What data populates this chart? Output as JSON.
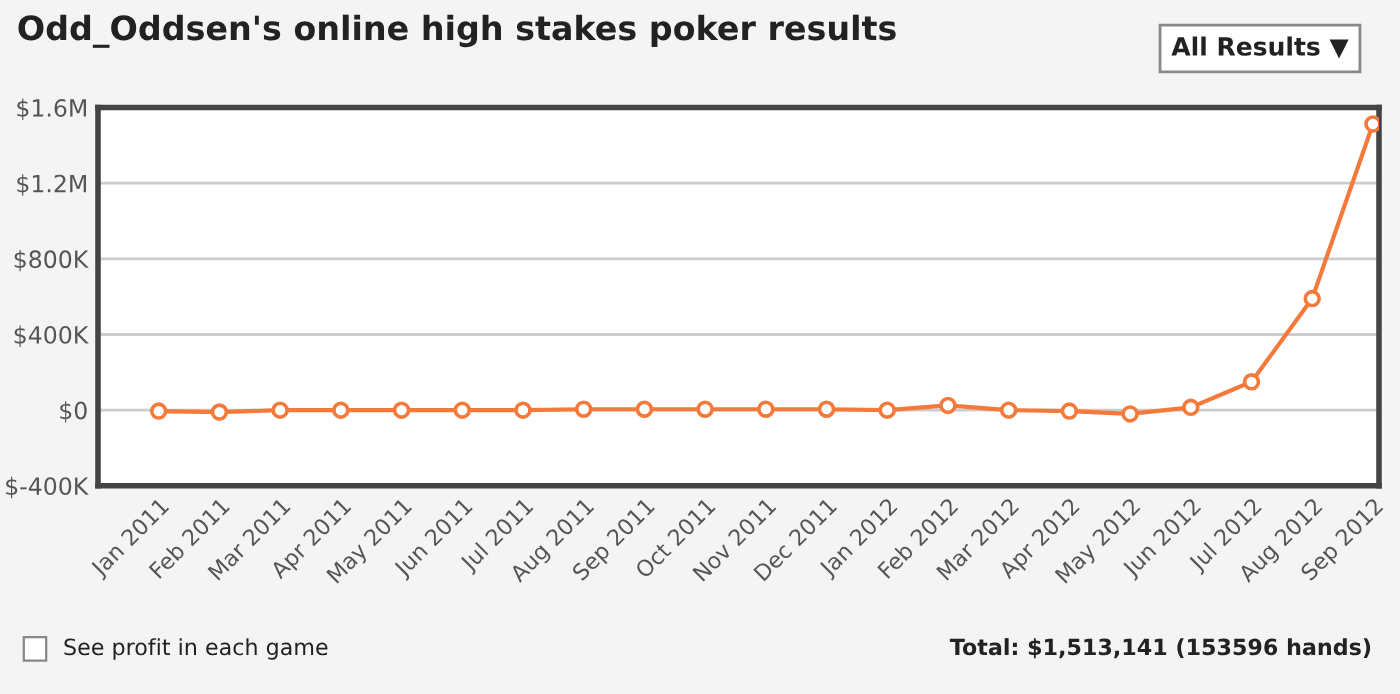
{
  "chart_data": {
    "type": "line",
    "title": "Odd_Oddsen's online high stakes poker results",
    "categories": [
      "Jan 2011",
      "Feb 2011",
      "Mar 2011",
      "Apr 2011",
      "May 2011",
      "Jun 2011",
      "Jul 2011",
      "Aug 2011",
      "Sep 2011",
      "Oct 2011",
      "Nov 2011",
      "Dec 2011",
      "Jan 2012",
      "Feb 2012",
      "Mar 2012",
      "Apr 2012",
      "May 2012",
      "Jun 2012",
      "Jul 2012",
      "Aug 2012",
      "Sep 2012"
    ],
    "series": [
      {
        "color": "#f47a3c",
        "values": [
          -5000,
          -10000,
          0,
          0,
          0,
          0,
          0,
          5000,
          5000,
          5000,
          5000,
          5000,
          0,
          25000,
          0,
          -5000,
          -20000,
          15000,
          150000,
          590000,
          1513141
        ]
      }
    ],
    "ylim": [
      -400000,
      1600000
    ],
    "yticks": [
      {
        "value": -400000,
        "label": "$-400K"
      },
      {
        "value": 0,
        "label": "$0"
      },
      {
        "value": 400000,
        "label": "$400K"
      },
      {
        "value": 800000,
        "label": "$800K"
      },
      {
        "value": 1200000,
        "label": "$1.2M"
      },
      {
        "value": 1600000,
        "label": "$1.6M"
      }
    ],
    "grid": "y",
    "marker": "circle",
    "line_style": "solid",
    "legend": false,
    "annotations": [
      "All Results ▼",
      "See profit in each game",
      "Total: $1,513,141 (153596 hands)"
    ]
  }
}
